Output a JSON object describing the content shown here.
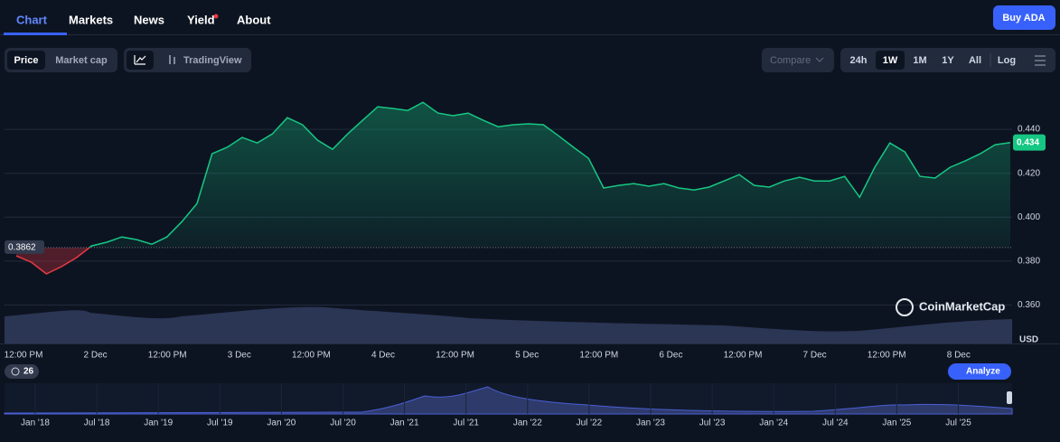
{
  "nav": {
    "tabs": [
      "Chart",
      "Markets",
      "News",
      "Yield",
      "About"
    ],
    "buy_button": "Buy ADA"
  },
  "toolbar": {
    "views": [
      "Price",
      "Market cap"
    ],
    "tradingview": "TradingView",
    "compare": "Compare",
    "ranges": [
      "24h",
      "1W",
      "1M",
      "1Y",
      "All",
      "Log"
    ]
  },
  "chart_data": {
    "type": "line",
    "color": "#16c784",
    "down_color": "#ea3943",
    "values": [
      0.3824,
      0.3795,
      0.3742,
      0.3775,
      0.3816,
      0.3869,
      0.3886,
      0.391,
      0.3898,
      0.3877,
      0.391,
      0.398,
      0.4062,
      0.4289,
      0.4318,
      0.4363,
      0.4338,
      0.4379,
      0.4453,
      0.4421,
      0.4351,
      0.4309,
      0.4379,
      0.4441,
      0.4503,
      0.4495,
      0.4486,
      0.4523,
      0.4474,
      0.4462,
      0.4474,
      0.4441,
      0.4412,
      0.4421,
      0.4425,
      0.4421,
      0.4371,
      0.4318,
      0.4268,
      0.4133,
      0.4145,
      0.4153,
      0.4141,
      0.4153,
      0.4133,
      0.4124,
      0.4137,
      0.4165,
      0.4194,
      0.4145,
      0.4137,
      0.4165,
      0.4182,
      0.4165,
      0.4165,
      0.4186,
      0.4091,
      0.4227,
      0.4338,
      0.4297,
      0.4186,
      0.4178,
      0.4227,
      0.4256,
      0.4289,
      0.433,
      0.434
    ],
    "ylim": [
      0.3425,
      0.4598
    ],
    "yticks": [
      {
        "value": 0.36,
        "label": "0.360"
      },
      {
        "value": 0.38,
        "label": "0.380"
      },
      {
        "value": 0.4,
        "label": "0.400"
      },
      {
        "value": 0.42,
        "label": "0.420"
      },
      {
        "value": 0.44,
        "label": "0.440"
      }
    ],
    "y_unit": "USD",
    "x_labels": [
      "12:00 PM",
      "2 Dec",
      "12:00 PM",
      "3 Dec",
      "12:00 PM",
      "4 Dec",
      "12:00 PM",
      "5 Dec",
      "12:00 PM",
      "6 Dec",
      "12:00 PM",
      "7 Dec",
      "12:00 PM",
      "8 Dec"
    ],
    "reference": {
      "value": 0.3862,
      "label": "0.3862"
    },
    "current_price": {
      "value": 0.434,
      "label": "0.434"
    },
    "watermark": "CoinMarketCap"
  },
  "badge": "26",
  "analyze": "Analyze",
  "navigator": {
    "labels": [
      "Jan '18",
      "Jul '18",
      "Jan '19",
      "Jul '19",
      "Jan '20",
      "Jul '20",
      "Jan '21",
      "Jul '21",
      "Jan '22",
      "Jul '22",
      "Jan '23",
      "Jul '23",
      "Jan '24",
      "Jul '24",
      "Jan '25",
      "Jul '25"
    ]
  }
}
